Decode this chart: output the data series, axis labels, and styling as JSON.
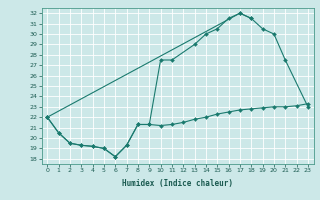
{
  "xlabel": "Humidex (Indice chaleur)",
  "bg_color": "#cce8e8",
  "grid_color": "#b0d8d8",
  "line_color": "#1a7a6e",
  "xlim": [
    -0.5,
    23.5
  ],
  "ylim": [
    17.5,
    32.5
  ],
  "yticks": [
    18,
    19,
    20,
    21,
    22,
    23,
    24,
    25,
    26,
    27,
    28,
    29,
    30,
    31,
    32
  ],
  "xticks": [
    0,
    1,
    2,
    3,
    4,
    5,
    6,
    7,
    8,
    9,
    10,
    11,
    12,
    13,
    14,
    15,
    16,
    17,
    18,
    19,
    20,
    21,
    22,
    23
  ],
  "line1_x": [
    0,
    1,
    2,
    3,
    4,
    5,
    6,
    7,
    8,
    9,
    10,
    11,
    13,
    14,
    15,
    16,
    17,
    18
  ],
  "line1_y": [
    22.0,
    20.5,
    19.5,
    19.3,
    19.2,
    19.0,
    18.2,
    19.3,
    21.3,
    21.3,
    27.5,
    27.5,
    29.0,
    30.0,
    30.5,
    31.5,
    32.0,
    31.5
  ],
  "line2_x": [
    0,
    17,
    18,
    19,
    20,
    21,
    23
  ],
  "line2_y": [
    22.0,
    32.0,
    31.5,
    30.5,
    30.0,
    27.5,
    23.0
  ],
  "line3_x": [
    0,
    1,
    2,
    3,
    4,
    5,
    6,
    7,
    8,
    9,
    10,
    11,
    12,
    13,
    14,
    15,
    16,
    17,
    18,
    19,
    20,
    21,
    22,
    23
  ],
  "line3_y": [
    22.0,
    20.5,
    19.5,
    19.3,
    19.2,
    19.0,
    18.2,
    19.3,
    21.3,
    21.3,
    21.2,
    21.3,
    21.5,
    21.8,
    22.0,
    22.3,
    22.5,
    22.7,
    22.8,
    22.9,
    23.0,
    23.0,
    23.1,
    23.3
  ]
}
